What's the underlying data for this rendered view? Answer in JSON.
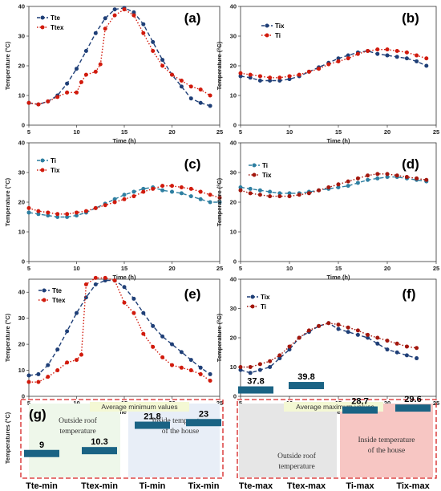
{
  "colors": {
    "dark_blue": "#1f3f77",
    "red": "#d11a0c",
    "teal": "#2e7fa1",
    "dark_red": "#a3170d",
    "bar": "#1a6384",
    "frame_red": "#d62020"
  },
  "chart_data": [
    {
      "panel": "(a)",
      "type": "line",
      "xlim": [
        5,
        25
      ],
      "ylim": [
        0,
        40
      ],
      "xticks": [
        5,
        10,
        15,
        20,
        25
      ],
      "yticks": [
        0,
        10,
        20,
        30,
        40
      ],
      "xlabel": "Time (h)",
      "ylabel": "Temperature (°C)",
      "legend_placement": "top-left",
      "series": [
        {
          "name": "Tte",
          "color": "#1f3f77",
          "style": "dashed",
          "x": [
            5,
            6,
            7,
            8,
            9,
            10,
            11,
            12,
            13,
            14,
            15,
            16,
            17,
            18,
            19,
            20,
            21,
            22,
            23,
            24
          ],
          "y": [
            7.5,
            7,
            8,
            10,
            14,
            19,
            25,
            31,
            36,
            39,
            39.5,
            38,
            34,
            28,
            22,
            17,
            13,
            9,
            7.5,
            6.5
          ]
        },
        {
          "name": "Ttex",
          "color": "#d11a0c",
          "style": "dotted",
          "x": [
            5,
            6,
            7,
            8,
            9,
            10,
            10.5,
            11,
            12,
            12.5,
            13,
            14,
            15,
            16,
            17,
            18,
            19,
            20,
            21,
            22,
            23,
            24
          ],
          "y": [
            7.5,
            7,
            8,
            9.5,
            11,
            11,
            14.5,
            17,
            18,
            20.5,
            32.5,
            37,
            39,
            37,
            31,
            25,
            20,
            17,
            15,
            13,
            12,
            10
          ]
        }
      ]
    },
    {
      "panel": "(b)",
      "type": "line",
      "xlim": [
        5,
        25
      ],
      "ylim": [
        0,
        40
      ],
      "xticks": [
        5,
        10,
        15,
        20,
        25
      ],
      "yticks": [
        0,
        10,
        20,
        30,
        40
      ],
      "xlabel": "Time (h)",
      "ylabel": "Temperature (°C)",
      "legend_placement": "top-left",
      "series": [
        {
          "name": "Tix",
          "color": "#1f3f77",
          "style": "dashed",
          "x": [
            5,
            6,
            7,
            8,
            9,
            10,
            11,
            12,
            13,
            14,
            15,
            16,
            17,
            18,
            19,
            20,
            21,
            22,
            23,
            24
          ],
          "y": [
            16.5,
            16,
            15,
            15,
            15,
            15.5,
            16.5,
            18,
            19.5,
            21,
            22.5,
            23.5,
            24.5,
            25,
            24,
            23.5,
            23,
            22.5,
            21.5,
            20
          ]
        },
        {
          "name": "Ti",
          "color": "#d11a0c",
          "style": "dotted",
          "x": [
            5,
            6,
            7,
            8,
            9,
            10,
            11,
            12,
            13,
            14,
            15,
            16,
            17,
            18,
            19,
            20,
            21,
            22,
            23,
            24
          ],
          "y": [
            17.5,
            17,
            16.5,
            16,
            16,
            16.5,
            17,
            18,
            19,
            20.5,
            21.5,
            22.5,
            24,
            25,
            25.5,
            25.5,
            25,
            24.5,
            23.5,
            22.5
          ]
        }
      ]
    },
    {
      "panel": "(c)",
      "type": "line",
      "xlim": [
        5,
        25
      ],
      "ylim": [
        0,
        40
      ],
      "xticks": [
        5,
        10,
        15,
        20,
        25
      ],
      "yticks": [
        0,
        10,
        20,
        30,
        40
      ],
      "xlabel": "Time (h)",
      "ylabel": "Temperature (°C)",
      "legend_placement": "top-left",
      "series": [
        {
          "name": "Ti",
          "color": "#2e7fa1",
          "style": "dashed",
          "x": [
            5,
            6,
            7,
            8,
            9,
            10,
            11,
            12,
            13,
            14,
            15,
            16,
            17,
            18,
            19,
            20,
            21,
            22,
            23,
            24,
            25
          ],
          "y": [
            16.5,
            16,
            15.5,
            15,
            15,
            15.5,
            16.5,
            18,
            19.5,
            21,
            22.5,
            23.5,
            24.5,
            25,
            24,
            23.5,
            23,
            22,
            21,
            20,
            20
          ]
        },
        {
          "name": "Tix",
          "color": "#d11a0c",
          "style": "dotted",
          "x": [
            5,
            6,
            7,
            8,
            9,
            10,
            11,
            12,
            13,
            14,
            15,
            16,
            17,
            18,
            19,
            20,
            21,
            22,
            23,
            24,
            25
          ],
          "y": [
            18,
            17,
            16.5,
            16,
            16,
            16.5,
            17,
            18,
            19,
            20,
            21,
            22,
            23.5,
            24.5,
            25.5,
            25.5,
            25,
            24.5,
            23.5,
            22.5,
            21.5
          ]
        }
      ]
    },
    {
      "panel": "(d)",
      "type": "line",
      "xlim": [
        5,
        25
      ],
      "ylim": [
        0,
        40
      ],
      "xticks": [
        5,
        10,
        15,
        20,
        25
      ],
      "yticks": [
        0,
        10,
        20,
        30,
        40
      ],
      "xlabel": "Time (h)",
      "ylabel": "Temperature (°C)",
      "legend_placement": "top-left",
      "series": [
        {
          "name": "Ti",
          "color": "#2e7fa1",
          "style": "dashed",
          "x": [
            5,
            6,
            7,
            8,
            9,
            10,
            11,
            12,
            13,
            14,
            15,
            16,
            17,
            18,
            19,
            20,
            21,
            22,
            23,
            24
          ],
          "y": [
            25,
            24.5,
            24,
            23.5,
            23,
            23,
            23,
            23.5,
            24,
            24.5,
            25,
            25.5,
            26.5,
            27.5,
            28,
            28.5,
            28.5,
            28,
            27.5,
            27
          ]
        },
        {
          "name": "Tix",
          "color": "#a3170d",
          "style": "dotted",
          "x": [
            5,
            6,
            7,
            8,
            9,
            10,
            11,
            12,
            13,
            14,
            15,
            16,
            17,
            18,
            19,
            20,
            21,
            22,
            23,
            24
          ],
          "y": [
            24,
            23,
            22.5,
            22,
            22,
            22,
            22.5,
            23,
            24,
            25,
            26,
            27,
            28,
            29,
            29.5,
            29.5,
            29,
            28.5,
            28,
            27.5
          ]
        }
      ]
    },
    {
      "panel": "(e)",
      "type": "line",
      "xlim": [
        5,
        25
      ],
      "ylim": [
        0,
        45
      ],
      "xticks": [
        5,
        10,
        15,
        20,
        25
      ],
      "yticks": [
        0,
        10,
        20,
        30,
        40
      ],
      "xlabel": "Time (h)",
      "ylabel": "Temperature (°C)",
      "legend_placement": "top-left",
      "series": [
        {
          "name": "Tte",
          "color": "#1f3f77",
          "style": "dashed",
          "x": [
            5,
            6,
            7,
            8,
            9,
            10,
            11,
            12,
            13,
            14,
            15,
            16,
            17,
            18,
            19,
            20,
            21,
            22,
            23,
            24
          ],
          "y": [
            8,
            8.5,
            12,
            18,
            25,
            32,
            38,
            43,
            44.5,
            44.5,
            42,
            37.5,
            32,
            27,
            23,
            20,
            17,
            14,
            11,
            8.5
          ]
        },
        {
          "name": "Ttex",
          "color": "#d11a0c",
          "style": "dotted",
          "x": [
            5,
            6,
            7,
            8,
            9,
            10,
            10.5,
            11,
            12,
            13,
            14,
            15,
            16,
            17,
            18,
            19,
            20,
            21,
            22,
            23,
            24
          ],
          "y": [
            5.5,
            5.5,
            7.5,
            10,
            13,
            14,
            16,
            43,
            45.5,
            45.5,
            44.5,
            36,
            32,
            24,
            19,
            15,
            12,
            11,
            10,
            8.5,
            6
          ]
        }
      ]
    },
    {
      "panel": "(f)",
      "type": "line",
      "xlim": [
        5,
        25
      ],
      "ylim": [
        0,
        40
      ],
      "xticks": [
        5,
        10,
        15,
        20,
        25
      ],
      "yticks": [
        0,
        10,
        20,
        30,
        40
      ],
      "xlabel": "Time (h)",
      "ylabel": "Temperature (°C)",
      "legend_placement": "top-left",
      "series": [
        {
          "name": "Tix",
          "color": "#1f3f77",
          "style": "dashed",
          "x": [
            5,
            6,
            7,
            8,
            9,
            10,
            11,
            12,
            13,
            14,
            15,
            16,
            17,
            18,
            19,
            20,
            21,
            22,
            23
          ],
          "y": [
            9,
            8,
            9,
            10,
            13,
            16,
            20,
            22,
            24,
            25,
            23,
            22,
            21,
            20,
            18,
            16,
            15,
            14,
            13
          ]
        },
        {
          "name": "Ti",
          "color": "#a3170d",
          "style": "dotted",
          "x": [
            5,
            6,
            7,
            8,
            9,
            10,
            11,
            12,
            13,
            14,
            15,
            16,
            17,
            18,
            19,
            20,
            21,
            22,
            23
          ],
          "y": [
            10,
            10,
            11,
            12,
            14,
            17,
            20,
            22.5,
            24,
            25,
            24.5,
            23.5,
            22.5,
            21,
            20,
            19,
            18,
            17,
            16.5
          ]
        }
      ]
    },
    {
      "panel": "(g)",
      "type": "bar",
      "ylabel": "Temperatures (°C)",
      "categories": [
        "Tte-min",
        "Ttex-min",
        "Ti-min",
        "Tix-min",
        "Tte-max",
        "Ttex-max",
        "Ti-max",
        "Tix-max"
      ],
      "values": [
        9,
        10.3,
        21.8,
        23,
        37.8,
        39.8,
        28.7,
        29.6
      ],
      "group_titles": [
        "Average minimum values",
        "Average maximum values"
      ],
      "annotations": [
        "Outside roof temperature",
        "Inside temperature of the house",
        "Outside roof temperature",
        "Inside temperature of the house"
      ]
    }
  ]
}
